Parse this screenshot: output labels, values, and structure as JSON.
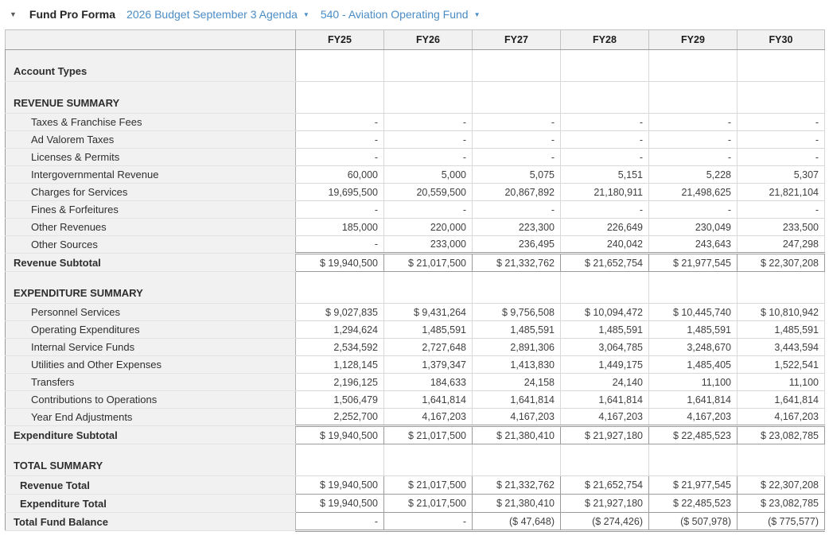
{
  "toolbar": {
    "collapse_icon": "▼",
    "title": "Fund Pro Forma",
    "budget_selector": {
      "label": "2026 Budget September 3 Agenda",
      "caret": "▼"
    },
    "fund_selector": {
      "label": "540 - Aviation Operating Fund",
      "caret": "▼"
    }
  },
  "colors": {
    "link_blue": "#4a8cc6",
    "header_bg": "#f1f1f1",
    "grid_light": "#d8d8d8",
    "grid_dark": "#9b9b9b",
    "text_dark": "#262626"
  },
  "table": {
    "columns": [
      "FY25",
      "FY26",
      "FY27",
      "FY28",
      "FY29",
      "FY30"
    ],
    "rows": [
      {
        "type": "section",
        "label": "Account Types",
        "values": [
          "",
          "",
          "",
          "",
          "",
          ""
        ]
      },
      {
        "type": "section",
        "label": "REVENUE SUMMARY",
        "values": [
          "",
          "",
          "",
          "",
          "",
          ""
        ]
      },
      {
        "type": "detail",
        "label": "Taxes & Franchise Fees",
        "values": [
          "-",
          "-",
          "-",
          "-",
          "-",
          "-"
        ]
      },
      {
        "type": "detail",
        "label": "Ad Valorem Taxes",
        "values": [
          "-",
          "-",
          "-",
          "-",
          "-",
          "-"
        ]
      },
      {
        "type": "detail",
        "label": "Licenses & Permits",
        "values": [
          "-",
          "-",
          "-",
          "-",
          "-",
          "-"
        ]
      },
      {
        "type": "detail",
        "label": "Intergovernmental Revenue",
        "values": [
          "60,000",
          "5,000",
          "5,075",
          "5,151",
          "5,228",
          "5,307"
        ]
      },
      {
        "type": "detail",
        "label": "Charges for Services",
        "values": [
          "19,695,500",
          "20,559,500",
          "20,867,892",
          "21,180,911",
          "21,498,625",
          "21,821,104"
        ]
      },
      {
        "type": "detail",
        "label": "Fines & Forfeitures",
        "values": [
          "-",
          "-",
          "-",
          "-",
          "-",
          "-"
        ]
      },
      {
        "type": "detail",
        "label": "Other Revenues",
        "values": [
          "185,000",
          "220,000",
          "223,300",
          "226,649",
          "230,049",
          "233,500"
        ]
      },
      {
        "type": "detail",
        "label": "Other Sources",
        "values": [
          "-",
          "233,000",
          "236,495",
          "240,042",
          "243,643",
          "247,298"
        ]
      },
      {
        "type": "subtotal",
        "label": "Revenue Subtotal",
        "values": [
          "$ 19,940,500",
          "$ 21,017,500",
          "$ 21,332,762",
          "$ 21,652,754",
          "$ 21,977,545",
          "$ 22,307,208"
        ]
      },
      {
        "type": "section",
        "label": "EXPENDITURE SUMMARY",
        "values": [
          "",
          "",
          "",
          "",
          "",
          ""
        ]
      },
      {
        "type": "detail",
        "label": "Personnel Services",
        "values": [
          "$ 9,027,835",
          "$ 9,431,264",
          "$ 9,756,508",
          "$ 10,094,472",
          "$ 10,445,740",
          "$ 10,810,942"
        ]
      },
      {
        "type": "detail",
        "label": "Operating Expenditures",
        "values": [
          "1,294,624",
          "1,485,591",
          "1,485,591",
          "1,485,591",
          "1,485,591",
          "1,485,591"
        ]
      },
      {
        "type": "detail",
        "label": "Internal Service Funds",
        "values": [
          "2,534,592",
          "2,727,648",
          "2,891,306",
          "3,064,785",
          "3,248,670",
          "3,443,594"
        ]
      },
      {
        "type": "detail",
        "label": "Utilities and Other Expenses",
        "values": [
          "1,128,145",
          "1,379,347",
          "1,413,830",
          "1,449,175",
          "1,485,405",
          "1,522,541"
        ]
      },
      {
        "type": "detail",
        "label": "Transfers",
        "values": [
          "2,196,125",
          "184,633",
          "24,158",
          "24,140",
          "11,100",
          "11,100"
        ]
      },
      {
        "type": "detail",
        "label": "Contributions to Operations",
        "values": [
          "1,506,479",
          "1,641,814",
          "1,641,814",
          "1,641,814",
          "1,641,814",
          "1,641,814"
        ]
      },
      {
        "type": "detail",
        "label": "Year End Adjustments",
        "values": [
          "2,252,700",
          "4,167,203",
          "4,167,203",
          "4,167,203",
          "4,167,203",
          "4,167,203"
        ]
      },
      {
        "type": "subtotal",
        "label": "Expenditure Subtotal",
        "values": [
          "$ 19,940,500",
          "$ 21,017,500",
          "$ 21,380,410",
          "$ 21,927,180",
          "$ 22,485,523",
          "$ 23,082,785"
        ]
      },
      {
        "type": "section",
        "label": "TOTAL SUMMARY",
        "values": [
          "",
          "",
          "",
          "",
          "",
          ""
        ]
      },
      {
        "type": "total",
        "label": "Revenue Total",
        "values": [
          "$ 19,940,500",
          "$ 21,017,500",
          "$ 21,332,762",
          "$ 21,652,754",
          "$ 21,977,545",
          "$ 22,307,208"
        ]
      },
      {
        "type": "total",
        "label": "Expenditure Total",
        "values": [
          "$ 19,940,500",
          "$ 21,017,500",
          "$ 21,380,410",
          "$ 21,927,180",
          "$ 22,485,523",
          "$ 23,082,785"
        ]
      },
      {
        "type": "grandtotal",
        "label": "Total Fund Balance",
        "values": [
          "-",
          "-",
          "($ 47,648)",
          "($ 274,426)",
          "($ 507,978)",
          "($ 775,577)"
        ]
      }
    ]
  }
}
